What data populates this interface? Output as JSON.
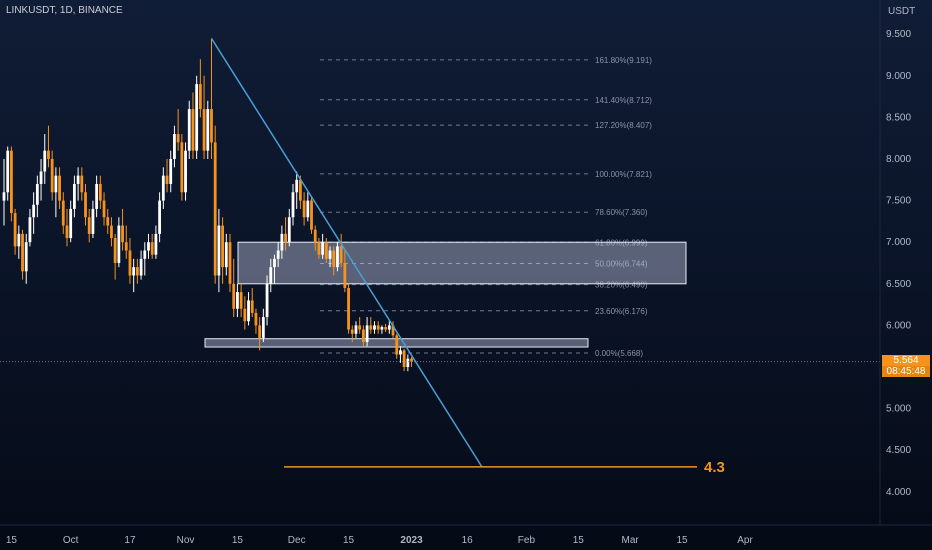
{
  "header": {
    "symbol_title": "LINKUSDT, 1D, BINANCE",
    "currency": "USDT"
  },
  "price_tag": {
    "price": "5.564",
    "countdown": "08:45:48"
  },
  "colors": {
    "up": "#ffffff",
    "down": "#f7931a",
    "trendline": "#4a9fd6",
    "target_line": "#f7931a",
    "zone_fill": "#c8cde8",
    "fib": "#8a93a8"
  },
  "chart_data": {
    "type": "candlestick",
    "title": "LINKUSDT, 1D, BINANCE",
    "y_axis": {
      "ticks": [
        "9.500",
        "9.000",
        "8.500",
        "8.000",
        "7.500",
        "7.000",
        "6.500",
        "6.000",
        "5.000",
        "4.500",
        "4.000"
      ],
      "ylim": [
        3.6,
        9.8
      ]
    },
    "x_axis": {
      "ticks": [
        "15",
        "Oct",
        "17",
        "Nov",
        "15",
        "Dec",
        "15",
        "2023",
        "16",
        "Feb",
        "15",
        "Mar",
        "15",
        "Apr"
      ]
    },
    "grid": false,
    "fib_levels": [
      {
        "label": "161.80%(9.191)",
        "price": 9.191
      },
      {
        "label": "141.40%(8.712)",
        "price": 8.712
      },
      {
        "label": "127.20%(8.407)",
        "price": 8.407
      },
      {
        "label": "100.00%(7.821)",
        "price": 7.821
      },
      {
        "label": "78.60%(7.360)",
        "price": 7.36
      },
      {
        "label": "61.80%(6.999)",
        "price": 6.999
      },
      {
        "label": "50.00%(6.744)",
        "price": 6.744
      },
      {
        "label": "38.20%(6.490)",
        "price": 6.49
      },
      {
        "label": "23.60%(6.176)",
        "price": 6.176
      },
      {
        "label": "0.00%(5.668)",
        "price": 5.668
      }
    ],
    "zones": [
      {
        "from": 6.5,
        "to": 7.0
      },
      {
        "from": 5.74,
        "to": 5.84
      }
    ],
    "trendline": {
      "from": {
        "date": "2022-11-08",
        "price": 9.45
      },
      "to": {
        "date": "2023-01-20",
        "price": 4.3
      }
    },
    "target": {
      "price": 4.3,
      "label": "4.3"
    },
    "current_price": 5.564,
    "candles": [
      {
        "date": "2022-09-13",
        "o": 7.5,
        "h": 8.0,
        "l": 7.2,
        "c": 7.6
      },
      {
        "date": "2022-09-14",
        "o": 7.6,
        "h": 8.15,
        "l": 7.5,
        "c": 8.1
      },
      {
        "date": "2022-09-15",
        "o": 8.1,
        "h": 8.15,
        "l": 7.25,
        "c": 7.35
      },
      {
        "date": "2022-09-16",
        "o": 7.35,
        "h": 7.4,
        "l": 6.85,
        "c": 6.95
      },
      {
        "date": "2022-09-17",
        "o": 6.95,
        "h": 7.2,
        "l": 6.8,
        "c": 7.1
      },
      {
        "date": "2022-09-18",
        "o": 7.1,
        "h": 7.15,
        "l": 6.55,
        "c": 6.65
      },
      {
        "date": "2022-09-19",
        "o": 6.65,
        "h": 7.1,
        "l": 6.5,
        "c": 7.0
      },
      {
        "date": "2022-09-20",
        "o": 7.0,
        "h": 7.4,
        "l": 6.95,
        "c": 7.3
      },
      {
        "date": "2022-09-21",
        "o": 7.3,
        "h": 7.6,
        "l": 7.1,
        "c": 7.45
      },
      {
        "date": "2022-09-22",
        "o": 7.45,
        "h": 7.8,
        "l": 7.3,
        "c": 7.7
      },
      {
        "date": "2022-09-23",
        "o": 7.7,
        "h": 8.0,
        "l": 7.5,
        "c": 7.85
      },
      {
        "date": "2022-09-24",
        "o": 7.85,
        "h": 8.3,
        "l": 7.7,
        "c": 8.1
      },
      {
        "date": "2022-09-25",
        "o": 8.1,
        "h": 8.4,
        "l": 7.9,
        "c": 8.0
      },
      {
        "date": "2022-09-26",
        "o": 8.0,
        "h": 8.1,
        "l": 7.5,
        "c": 7.6
      },
      {
        "date": "2022-09-27",
        "o": 7.6,
        "h": 7.9,
        "l": 7.3,
        "c": 7.8
      },
      {
        "date": "2022-09-28",
        "o": 7.8,
        "h": 7.9,
        "l": 7.4,
        "c": 7.5
      },
      {
        "date": "2022-09-29",
        "o": 7.5,
        "h": 7.6,
        "l": 7.1,
        "c": 7.2
      },
      {
        "date": "2022-09-30",
        "o": 7.2,
        "h": 7.4,
        "l": 6.95,
        "c": 7.05
      },
      {
        "date": "2022-10-01",
        "o": 7.05,
        "h": 7.5,
        "l": 7.0,
        "c": 7.4
      },
      {
        "date": "2022-10-02",
        "o": 7.4,
        "h": 7.8,
        "l": 7.3,
        "c": 7.7
      },
      {
        "date": "2022-10-03",
        "o": 7.7,
        "h": 7.9,
        "l": 7.5,
        "c": 7.8
      },
      {
        "date": "2022-10-04",
        "o": 7.8,
        "h": 7.9,
        "l": 7.5,
        "c": 7.6
      },
      {
        "date": "2022-10-05",
        "o": 7.6,
        "h": 7.7,
        "l": 7.2,
        "c": 7.3
      },
      {
        "date": "2022-10-06",
        "o": 7.3,
        "h": 7.4,
        "l": 7.0,
        "c": 7.1
      },
      {
        "date": "2022-10-07",
        "o": 7.1,
        "h": 7.5,
        "l": 7.05,
        "c": 7.4
      },
      {
        "date": "2022-10-08",
        "o": 7.4,
        "h": 7.8,
        "l": 7.3,
        "c": 7.7
      },
      {
        "date": "2022-10-09",
        "o": 7.7,
        "h": 7.8,
        "l": 7.4,
        "c": 7.5
      },
      {
        "date": "2022-10-10",
        "o": 7.5,
        "h": 7.6,
        "l": 7.2,
        "c": 7.3
      },
      {
        "date": "2022-10-11",
        "o": 7.3,
        "h": 7.4,
        "l": 7.1,
        "c": 7.2
      },
      {
        "date": "2022-10-12",
        "o": 7.2,
        "h": 7.3,
        "l": 6.95,
        "c": 7.05
      },
      {
        "date": "2022-10-13",
        "o": 7.05,
        "h": 7.1,
        "l": 6.55,
        "c": 6.75
      },
      {
        "date": "2022-10-14",
        "o": 6.75,
        "h": 7.3,
        "l": 6.7,
        "c": 7.2
      },
      {
        "date": "2022-10-15",
        "o": 7.2,
        "h": 7.4,
        "l": 6.9,
        "c": 7.0
      },
      {
        "date": "2022-10-16",
        "o": 7.0,
        "h": 7.2,
        "l": 6.8,
        "c": 6.9
      },
      {
        "date": "2022-10-17",
        "o": 6.9,
        "h": 7.05,
        "l": 6.5,
        "c": 6.6
      },
      {
        "date": "2022-10-18",
        "o": 6.6,
        "h": 6.8,
        "l": 6.4,
        "c": 6.7
      },
      {
        "date": "2022-10-19",
        "o": 6.7,
        "h": 6.8,
        "l": 6.5,
        "c": 6.6
      },
      {
        "date": "2022-10-20",
        "o": 6.6,
        "h": 6.9,
        "l": 6.55,
        "c": 6.8
      },
      {
        "date": "2022-10-21",
        "o": 6.8,
        "h": 7.0,
        "l": 6.6,
        "c": 6.9
      },
      {
        "date": "2022-10-22",
        "o": 6.9,
        "h": 7.1,
        "l": 6.8,
        "c": 7.0
      },
      {
        "date": "2022-10-23",
        "o": 7.0,
        "h": 7.1,
        "l": 6.8,
        "c": 6.85
      },
      {
        "date": "2022-10-24",
        "o": 6.85,
        "h": 7.2,
        "l": 6.8,
        "c": 7.1
      },
      {
        "date": "2022-10-25",
        "o": 7.1,
        "h": 7.6,
        "l": 7.0,
        "c": 7.5
      },
      {
        "date": "2022-10-26",
        "o": 7.5,
        "h": 7.9,
        "l": 7.4,
        "c": 7.8
      },
      {
        "date": "2022-10-27",
        "o": 7.8,
        "h": 8.0,
        "l": 7.6,
        "c": 7.7
      },
      {
        "date": "2022-10-28",
        "o": 7.7,
        "h": 8.1,
        "l": 7.6,
        "c": 8.0
      },
      {
        "date": "2022-10-29",
        "o": 8.0,
        "h": 8.4,
        "l": 7.9,
        "c": 8.3
      },
      {
        "date": "2022-10-30",
        "o": 8.3,
        "h": 8.6,
        "l": 8.1,
        "c": 8.2
      },
      {
        "date": "2022-10-31",
        "o": 8.2,
        "h": 8.3,
        "l": 7.5,
        "c": 7.6
      },
      {
        "date": "2022-11-01",
        "o": 7.6,
        "h": 8.2,
        "l": 7.5,
        "c": 8.1
      },
      {
        "date": "2022-11-02",
        "o": 8.1,
        "h": 8.7,
        "l": 8.0,
        "c": 8.6
      },
      {
        "date": "2022-11-03",
        "o": 8.6,
        "h": 8.8,
        "l": 8.0,
        "c": 8.1
      },
      {
        "date": "2022-11-04",
        "o": 8.1,
        "h": 9.0,
        "l": 8.0,
        "c": 8.9
      },
      {
        "date": "2022-11-05",
        "o": 8.9,
        "h": 9.2,
        "l": 8.5,
        "c": 8.6
      },
      {
        "date": "2022-11-06",
        "o": 8.6,
        "h": 9.0,
        "l": 8.0,
        "c": 8.1
      },
      {
        "date": "2022-11-07",
        "o": 8.1,
        "h": 8.7,
        "l": 8.0,
        "c": 8.6
      },
      {
        "date": "2022-11-08",
        "o": 8.6,
        "h": 9.45,
        "l": 8.0,
        "c": 8.2
      },
      {
        "date": "2022-11-09",
        "o": 8.2,
        "h": 8.4,
        "l": 6.5,
        "c": 6.6
      },
      {
        "date": "2022-11-10",
        "o": 6.6,
        "h": 7.4,
        "l": 6.4,
        "c": 7.2
      },
      {
        "date": "2022-11-11",
        "o": 7.2,
        "h": 7.3,
        "l": 6.5,
        "c": 6.7
      },
      {
        "date": "2022-11-12",
        "o": 6.7,
        "h": 7.1,
        "l": 6.6,
        "c": 7.0
      },
      {
        "date": "2022-11-13",
        "o": 7.0,
        "h": 7.1,
        "l": 6.4,
        "c": 6.5
      },
      {
        "date": "2022-11-14",
        "o": 6.5,
        "h": 6.8,
        "l": 6.1,
        "c": 6.2
      },
      {
        "date": "2022-11-15",
        "o": 6.2,
        "h": 6.5,
        "l": 6.1,
        "c": 6.4
      },
      {
        "date": "2022-11-16",
        "o": 6.4,
        "h": 6.5,
        "l": 6.1,
        "c": 6.2
      },
      {
        "date": "2022-11-17",
        "o": 6.2,
        "h": 6.35,
        "l": 5.95,
        "c": 6.05
      },
      {
        "date": "2022-11-18",
        "o": 6.05,
        "h": 6.4,
        "l": 6.0,
        "c": 6.3
      },
      {
        "date": "2022-11-19",
        "o": 6.3,
        "h": 6.45,
        "l": 6.1,
        "c": 6.15
      },
      {
        "date": "2022-11-20",
        "o": 6.15,
        "h": 6.2,
        "l": 5.9,
        "c": 6.0
      },
      {
        "date": "2022-11-21",
        "o": 6.0,
        "h": 6.1,
        "l": 5.7,
        "c": 5.85
      },
      {
        "date": "2022-11-22",
        "o": 5.85,
        "h": 6.2,
        "l": 5.8,
        "c": 6.1
      },
      {
        "date": "2022-11-23",
        "o": 6.1,
        "h": 6.6,
        "l": 6.0,
        "c": 6.5
      },
      {
        "date": "2022-11-24",
        "o": 6.5,
        "h": 6.8,
        "l": 6.4,
        "c": 6.7
      },
      {
        "date": "2022-11-25",
        "o": 6.7,
        "h": 6.85,
        "l": 6.5,
        "c": 6.8
      },
      {
        "date": "2022-11-26",
        "o": 6.8,
        "h": 7.0,
        "l": 6.7,
        "c": 6.9
      },
      {
        "date": "2022-11-27",
        "o": 6.9,
        "h": 7.2,
        "l": 6.8,
        "c": 7.1
      },
      {
        "date": "2022-11-28",
        "o": 7.1,
        "h": 7.3,
        "l": 6.9,
        "c": 7.0
      },
      {
        "date": "2022-11-29",
        "o": 7.0,
        "h": 7.4,
        "l": 6.95,
        "c": 7.3
      },
      {
        "date": "2022-11-30",
        "o": 7.3,
        "h": 7.7,
        "l": 7.2,
        "c": 7.6
      },
      {
        "date": "2022-12-01",
        "o": 7.6,
        "h": 7.85,
        "l": 7.4,
        "c": 7.75
      },
      {
        "date": "2022-12-02",
        "o": 7.75,
        "h": 7.8,
        "l": 7.4,
        "c": 7.5
      },
      {
        "date": "2022-12-03",
        "o": 7.5,
        "h": 7.6,
        "l": 7.2,
        "c": 7.3
      },
      {
        "date": "2022-12-04",
        "o": 7.3,
        "h": 7.6,
        "l": 7.25,
        "c": 7.5
      },
      {
        "date": "2022-12-05",
        "o": 7.5,
        "h": 7.55,
        "l": 7.1,
        "c": 7.15
      },
      {
        "date": "2022-12-06",
        "o": 7.15,
        "h": 7.2,
        "l": 6.9,
        "c": 7.0
      },
      {
        "date": "2022-12-07",
        "o": 7.0,
        "h": 7.05,
        "l": 6.8,
        "c": 6.85
      },
      {
        "date": "2022-12-08",
        "o": 6.85,
        "h": 7.1,
        "l": 6.8,
        "c": 7.0
      },
      {
        "date": "2022-12-09",
        "o": 7.0,
        "h": 7.05,
        "l": 6.75,
        "c": 6.8
      },
      {
        "date": "2022-12-10",
        "o": 6.8,
        "h": 6.95,
        "l": 6.7,
        "c": 6.9
      },
      {
        "date": "2022-12-11",
        "o": 6.9,
        "h": 6.95,
        "l": 6.6,
        "c": 6.7
      },
      {
        "date": "2022-12-12",
        "o": 6.7,
        "h": 7.0,
        "l": 6.65,
        "c": 6.95
      },
      {
        "date": "2022-12-13",
        "o": 6.95,
        "h": 7.1,
        "l": 6.7,
        "c": 6.75
      },
      {
        "date": "2022-12-14",
        "o": 6.75,
        "h": 6.9,
        "l": 6.4,
        "c": 6.45
      },
      {
        "date": "2022-12-15",
        "o": 6.45,
        "h": 6.5,
        "l": 5.9,
        "c": 5.95
      },
      {
        "date": "2022-12-16",
        "o": 5.95,
        "h": 6.0,
        "l": 5.8,
        "c": 5.9
      },
      {
        "date": "2022-12-17",
        "o": 5.9,
        "h": 6.05,
        "l": 5.85,
        "c": 6.0
      },
      {
        "date": "2022-12-18",
        "o": 6.0,
        "h": 6.1,
        "l": 5.9,
        "c": 5.95
      },
      {
        "date": "2022-12-19",
        "o": 5.95,
        "h": 6.0,
        "l": 5.75,
        "c": 5.8
      },
      {
        "date": "2022-12-20",
        "o": 5.8,
        "h": 6.1,
        "l": 5.75,
        "c": 6.0
      },
      {
        "date": "2022-12-21",
        "o": 6.0,
        "h": 6.1,
        "l": 5.9,
        "c": 5.95
      },
      {
        "date": "2022-12-22",
        "o": 5.95,
        "h": 6.05,
        "l": 5.9,
        "c": 6.0
      },
      {
        "date": "2022-12-23",
        "o": 6.0,
        "h": 6.05,
        "l": 5.9,
        "c": 5.95
      },
      {
        "date": "2022-12-24",
        "o": 5.95,
        "h": 6.0,
        "l": 5.9,
        "c": 5.98
      },
      {
        "date": "2022-12-25",
        "o": 5.98,
        "h": 6.02,
        "l": 5.92,
        "c": 5.95
      },
      {
        "date": "2022-12-26",
        "o": 5.95,
        "h": 6.05,
        "l": 5.9,
        "c": 6.0
      },
      {
        "date": "2022-12-27",
        "o": 6.0,
        "h": 6.05,
        "l": 5.85,
        "c": 5.88
      },
      {
        "date": "2022-12-28",
        "o": 5.88,
        "h": 5.9,
        "l": 5.6,
        "c": 5.65
      },
      {
        "date": "2022-12-29",
        "o": 5.65,
        "h": 5.75,
        "l": 5.55,
        "c": 5.7
      },
      {
        "date": "2022-12-30",
        "o": 5.7,
        "h": 5.72,
        "l": 5.45,
        "c": 5.5
      },
      {
        "date": "2022-12-31",
        "o": 5.5,
        "h": 5.65,
        "l": 5.45,
        "c": 5.6
      },
      {
        "date": "2023-01-01",
        "o": 5.6,
        "h": 5.62,
        "l": 5.5,
        "c": 5.564
      }
    ]
  }
}
